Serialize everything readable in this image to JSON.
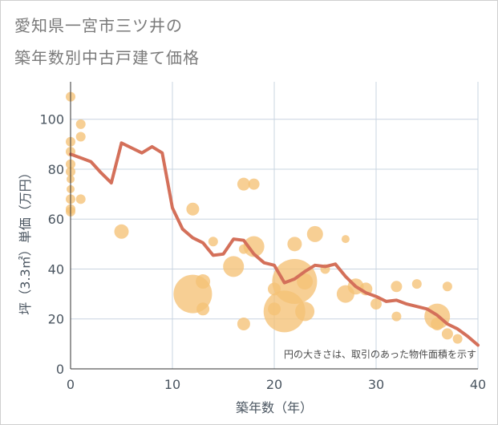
{
  "title_line1": "愛知県一宮市三ツ井の",
  "title_line2": "築年数別中古戸建て価格",
  "chart_data": {
    "type": "scatter",
    "xlabel": "築年数（年）",
    "ylabel": "坪（3.3㎡）単価（万円）",
    "note": "円の大きさは、取引のあった物件面積を示す",
    "xlim": [
      0,
      40
    ],
    "ylim": [
      0,
      115
    ],
    "xticks": [
      "0",
      "10",
      "20",
      "30",
      "40"
    ],
    "xtick_values": [
      0,
      10,
      20,
      30,
      40
    ],
    "yticks": [
      "0",
      "20",
      "40",
      "60",
      "80",
      "100"
    ],
    "ytick_values": [
      0,
      20,
      40,
      60,
      80,
      100
    ],
    "grid": true,
    "colors": {
      "bubble": "#f5c276",
      "line": "#d4705a",
      "grid": "#c8d4e0",
      "axis": "#333333"
    },
    "bubbles": [
      {
        "x": 0,
        "y": 109,
        "r": 6
      },
      {
        "x": 0,
        "y": 91,
        "r": 6
      },
      {
        "x": 0,
        "y": 87,
        "r": 6
      },
      {
        "x": 0,
        "y": 82,
        "r": 6
      },
      {
        "x": 0,
        "y": 79,
        "r": 6
      },
      {
        "x": 0,
        "y": 76,
        "r": 5
      },
      {
        "x": 0,
        "y": 72,
        "r": 5
      },
      {
        "x": 0,
        "y": 68,
        "r": 6
      },
      {
        "x": 0,
        "y": 64,
        "r": 6
      },
      {
        "x": 0,
        "y": 63,
        "r": 6
      },
      {
        "x": 1,
        "y": 98,
        "r": 6
      },
      {
        "x": 1,
        "y": 93,
        "r": 6
      },
      {
        "x": 1,
        "y": 68,
        "r": 6
      },
      {
        "x": 5,
        "y": 55,
        "r": 9
      },
      {
        "x": 12,
        "y": 64,
        "r": 8
      },
      {
        "x": 12,
        "y": 30,
        "r": 24
      },
      {
        "x": 13,
        "y": 35,
        "r": 9
      },
      {
        "x": 13,
        "y": 24,
        "r": 8
      },
      {
        "x": 14,
        "y": 51,
        "r": 6
      },
      {
        "x": 16,
        "y": 41,
        "r": 13
      },
      {
        "x": 17,
        "y": 74,
        "r": 8
      },
      {
        "x": 17,
        "y": 48,
        "r": 6
      },
      {
        "x": 17,
        "y": 18,
        "r": 8
      },
      {
        "x": 18,
        "y": 74,
        "r": 7
      },
      {
        "x": 18,
        "y": 49,
        "r": 13
      },
      {
        "x": 20,
        "y": 32,
        "r": 8
      },
      {
        "x": 20,
        "y": 24,
        "r": 8
      },
      {
        "x": 21,
        "y": 23,
        "r": 26
      },
      {
        "x": 22,
        "y": 35,
        "r": 28
      },
      {
        "x": 22,
        "y": 50,
        "r": 9
      },
      {
        "x": 23,
        "y": 35,
        "r": 10
      },
      {
        "x": 23,
        "y": 23,
        "r": 12
      },
      {
        "x": 24,
        "y": 54,
        "r": 10
      },
      {
        "x": 25,
        "y": 40,
        "r": 6
      },
      {
        "x": 27,
        "y": 52,
        "r": 5
      },
      {
        "x": 27,
        "y": 30,
        "r": 11
      },
      {
        "x": 28,
        "y": 33,
        "r": 10
      },
      {
        "x": 29,
        "y": 32,
        "r": 8
      },
      {
        "x": 30,
        "y": 26,
        "r": 7
      },
      {
        "x": 32,
        "y": 33,
        "r": 7
      },
      {
        "x": 32,
        "y": 21,
        "r": 6
      },
      {
        "x": 34,
        "y": 34,
        "r": 6
      },
      {
        "x": 36,
        "y": 21,
        "r": 16
      },
      {
        "x": 36,
        "y": 18,
        "r": 8
      },
      {
        "x": 37,
        "y": 33,
        "r": 6
      },
      {
        "x": 37,
        "y": 14,
        "r": 7
      },
      {
        "x": 38,
        "y": 12,
        "r": 6
      }
    ],
    "series": [
      {
        "x": [
          0,
          1,
          2,
          3,
          4,
          5,
          6,
          7,
          8,
          9,
          10,
          11,
          12,
          13,
          14,
          15,
          16,
          17,
          18,
          19,
          20,
          21,
          22,
          23,
          24,
          25,
          26,
          27,
          28,
          29,
          30,
          31,
          32,
          33,
          34,
          35,
          36,
          37,
          38,
          39,
          40
        ],
        "y": [
          86,
          84.5,
          83,
          78.5,
          74.5,
          90.5,
          88.5,
          86.5,
          89,
          86.5,
          64.5,
          56,
          52.5,
          50.5,
          45.5,
          46,
          52,
          51.5,
          46,
          42.5,
          41.5,
          34.5,
          36,
          39,
          41.5,
          41,
          42,
          37,
          33,
          30.5,
          29,
          27,
          27.5,
          26,
          25,
          24,
          21.5,
          18,
          16,
          13,
          9.5
        ]
      }
    ]
  }
}
